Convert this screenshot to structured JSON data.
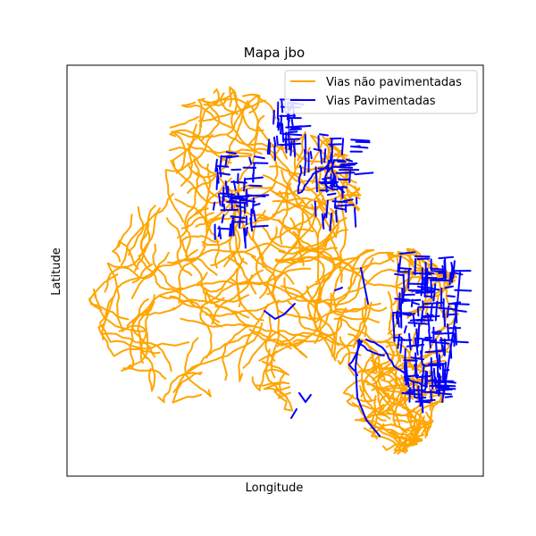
{
  "chart_data": {
    "type": "map",
    "title": "Mapa jbo",
    "xlabel": "Longitude",
    "ylabel": "Latitude",
    "grid": false,
    "ticks_visible": false,
    "legend_position": "upper-right",
    "series": [
      {
        "name": "Vias não pavimentadas",
        "color": "#ffa500"
      },
      {
        "name": "Vias Pavimentadas",
        "color": "#0000ff"
      }
    ]
  }
}
